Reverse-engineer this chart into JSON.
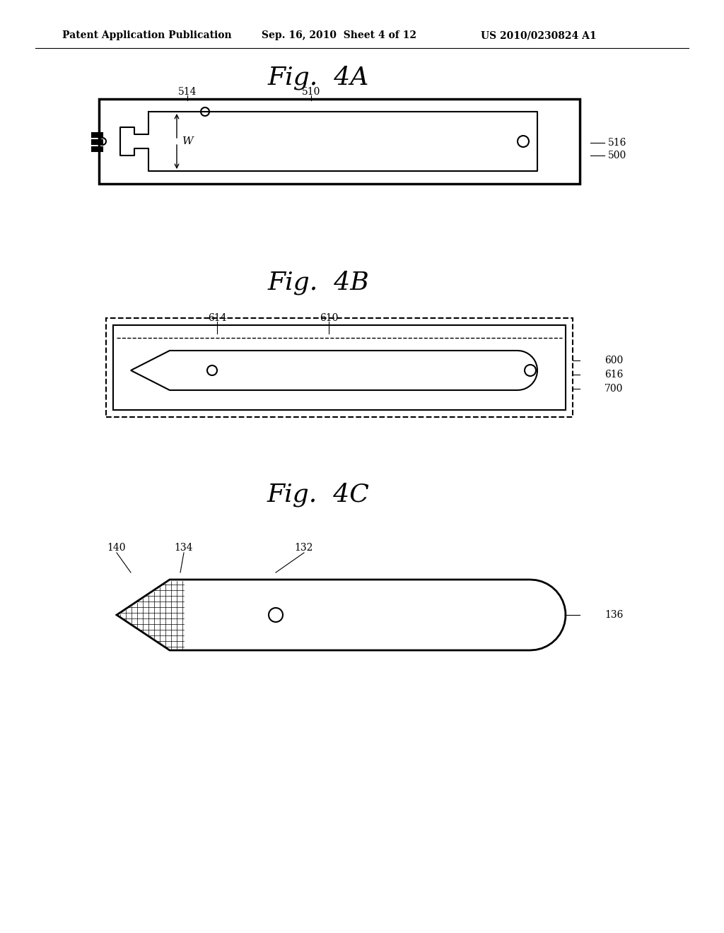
{
  "background_color": "#ffffff",
  "header_text": "Patent Application Publication",
  "header_date": "Sep. 16, 2010  Sheet 4 of 12",
  "header_patent": "US 2010/0230824 A1",
  "fig4A_title": "Fig.  4A",
  "fig4B_title": "Fig.  4B",
  "fig4C_title": "Fig.  4C",
  "line_color": "#000000",
  "label_color": "#000000",
  "fig4A_labels": [
    "514",
    "510",
    "516",
    "500",
    "W"
  ],
  "fig4B_labels": [
    "614",
    "610",
    "600",
    "616",
    "700"
  ],
  "fig4C_labels": [
    "140",
    "134",
    "132",
    "136"
  ]
}
